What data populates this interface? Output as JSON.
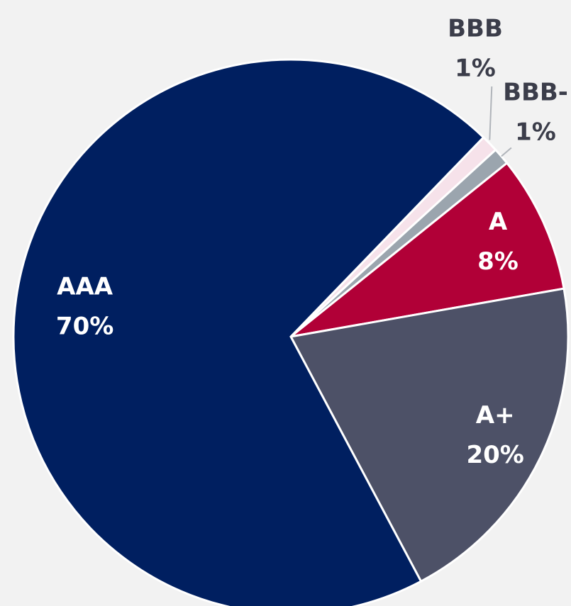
{
  "chart_data": {
    "type": "pie",
    "categories": [
      "BBB",
      "BBB-",
      "A",
      "A+",
      "AAA"
    ],
    "values": [
      1,
      1,
      8,
      20,
      70
    ],
    "value_labels": [
      "1%",
      "1%",
      "8%",
      "20%",
      "70%"
    ],
    "colors": [
      "#f6e2ea",
      "#9ba5ae",
      "#b10037",
      "#4d5167",
      "#001f60"
    ]
  }
}
